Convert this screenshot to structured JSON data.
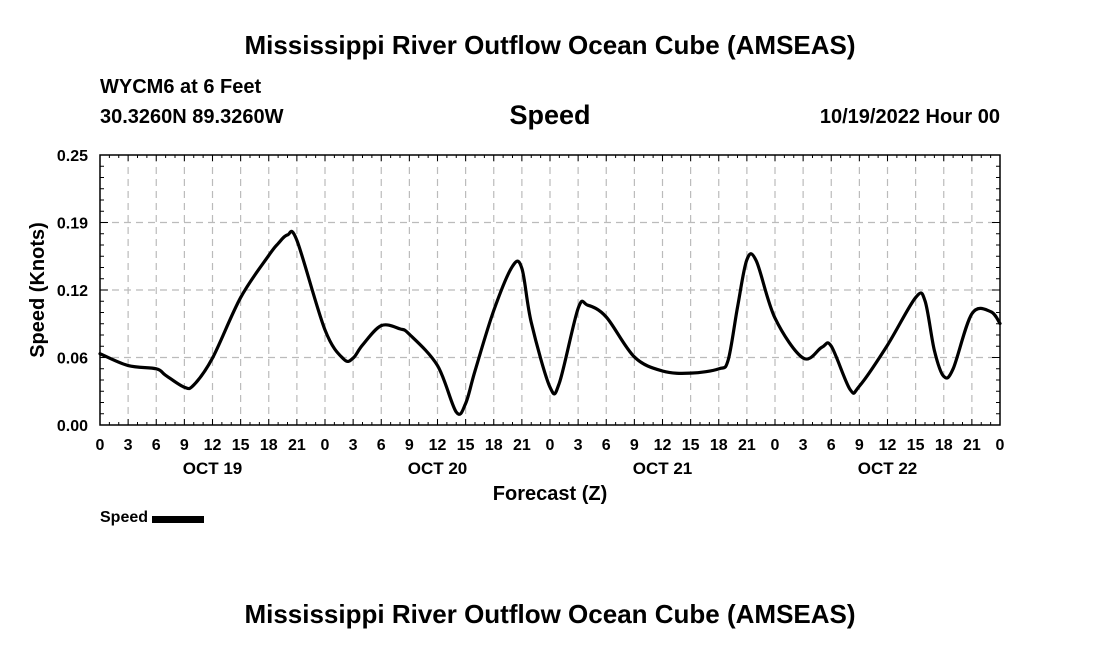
{
  "title": "Mississippi River Outflow Ocean Cube (AMSEAS)",
  "footer_title": "Mississippi River Outflow Ocean Cube (AMSEAS)",
  "station": "WYCM6 at 6 Feet",
  "coordinates": "30.3260N  89.3260W",
  "datetime": "10/19/2022 Hour 00",
  "chart_data": {
    "type": "line",
    "title": "Speed",
    "xlabel": "Forecast (Z)",
    "ylabel": "Speed (Knots)",
    "xlim": [
      0,
      96
    ],
    "ylim": [
      0,
      0.25
    ],
    "ytick_labels": [
      "0.00",
      "0.06",
      "0.12",
      "0.19",
      "0.25"
    ],
    "ytick_values": [
      0,
      0.0625,
      0.125,
      0.1875,
      0.25
    ],
    "xtick_labels": [
      "0",
      "3",
      "6",
      "9",
      "12",
      "15",
      "18",
      "21",
      "0",
      "3",
      "6",
      "9",
      "12",
      "15",
      "18",
      "21",
      "0",
      "3",
      "6",
      "9",
      "12",
      "15",
      "18",
      "21",
      "0",
      "3",
      "6",
      "9",
      "12",
      "15",
      "18",
      "21",
      "0"
    ],
    "day_labels": [
      {
        "label": "OCT 19",
        "x": 12
      },
      {
        "label": "OCT 20",
        "x": 36
      },
      {
        "label": "OCT 21",
        "x": 60
      },
      {
        "label": "OCT 22",
        "x": 84
      }
    ],
    "grid": true,
    "series": [
      {
        "name": "Speed",
        "color": "#000000",
        "x": [
          0,
          3,
          6,
          7,
          9,
          10,
          12,
          15,
          18,
          19,
          20,
          21,
          24,
          26,
          27,
          28,
          30,
          32,
          33,
          36,
          38,
          39,
          40,
          42,
          44,
          45,
          46,
          48,
          49,
          51,
          52,
          54,
          57,
          60,
          63,
          66,
          67,
          68,
          69,
          70,
          72,
          75,
          77,
          78,
          80,
          81,
          84,
          87,
          88,
          89,
          90,
          91,
          93,
          95,
          96
        ],
        "y": [
          0.066,
          0.055,
          0.052,
          0.046,
          0.035,
          0.037,
          0.062,
          0.118,
          0.157,
          0.168,
          0.176,
          0.171,
          0.088,
          0.061,
          0.062,
          0.074,
          0.092,
          0.089,
          0.084,
          0.055,
          0.012,
          0.02,
          0.05,
          0.106,
          0.147,
          0.145,
          0.095,
          0.035,
          0.039,
          0.108,
          0.111,
          0.1,
          0.063,
          0.05,
          0.048,
          0.052,
          0.06,
          0.109,
          0.153,
          0.152,
          0.099,
          0.062,
          0.072,
          0.073,
          0.033,
          0.036,
          0.074,
          0.118,
          0.115,
          0.069,
          0.045,
          0.052,
          0.103,
          0.105,
          0.094
        ]
      }
    ]
  },
  "legend": {
    "label": "Speed",
    "placement": "bottom-left"
  }
}
